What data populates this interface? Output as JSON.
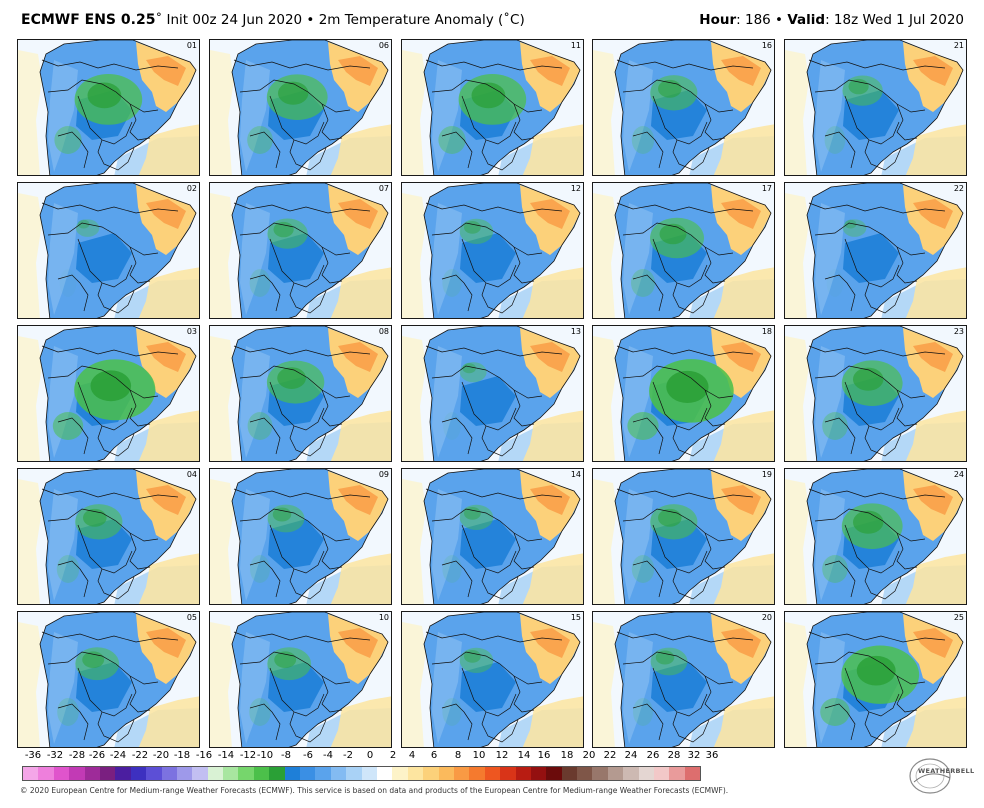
{
  "header": {
    "model": "ECMWF ENS 0.25",
    "init": "Init 00z 24 Jun 2020",
    "sep": "•",
    "variable": "2m Temperature Anomaly (˚C)",
    "hour_label": "Hour",
    "hour_value": ": 186",
    "valid_label": "Valid",
    "valid_value": ": 18z Wed 1 Jul 2020"
  },
  "members": [
    "01",
    "06",
    "11",
    "16",
    "21",
    "02",
    "07",
    "12",
    "17",
    "22",
    "03",
    "08",
    "13",
    "18",
    "23",
    "04",
    "09",
    "14",
    "19",
    "24",
    "05",
    "10",
    "15",
    "20",
    "25"
  ],
  "member_warmth": [
    0.7,
    0.6,
    0.7,
    0.4,
    0.3,
    0.05,
    0.3,
    0.2,
    0.5,
    0.05,
    0.9,
    0.55,
    0.1,
    0.95,
    0.6,
    0.4,
    0.25,
    0.2,
    0.4,
    0.6,
    0.35,
    0.35,
    0.2,
    0.25,
    0.85
  ],
  "colorbar": {
    "labels": [
      "-36",
      "-32",
      "-28",
      "-26",
      "-24",
      "-22",
      "-20",
      "-18",
      "-16",
      "-14",
      "-12",
      "-10",
      "-8",
      "-6",
      "-4",
      "-2",
      "0",
      "2",
      "4",
      "6",
      "8",
      "10",
      "12",
      "14",
      "16",
      "18",
      "20",
      "22",
      "24",
      "26",
      "28",
      "32",
      "36"
    ],
    "colors": [
      "#f4a6e8",
      "#ee7fdc",
      "#e054cc",
      "#c23ab5",
      "#9e2b99",
      "#7a1f80",
      "#4b1ea0",
      "#3d30c0",
      "#5c4fd6",
      "#7c72e0",
      "#9e99ea",
      "#c2bff2",
      "#d9f2d4",
      "#a8e6a0",
      "#76d66c",
      "#4cc04a",
      "#2aa036",
      "#1e7fd8",
      "#3a8fe4",
      "#5aa3ec",
      "#83bbf2",
      "#a9d2f6",
      "#cfe6fa",
      "#ffffff",
      "#fdf3c8",
      "#fde5a0",
      "#fcd17a",
      "#fbba5c",
      "#f99a44",
      "#f57a2e",
      "#ee5620",
      "#d93418",
      "#b81c12",
      "#941010",
      "#6b0b0b",
      "#6a3a2e",
      "#7f5648",
      "#98776b",
      "#b49a90",
      "#cdb9b2",
      "#e4d6d2",
      "#f2c8c8",
      "#e99b9b",
      "#dd6e6e"
    ]
  },
  "footer": "© 2020 European Centre for Medium-range Weather Forecasts (ECMWF). This service is based on data and products of the European Centre for Medium-range Weather Forecasts (ECMWF).",
  "logo_text": "WEATHERBELL"
}
